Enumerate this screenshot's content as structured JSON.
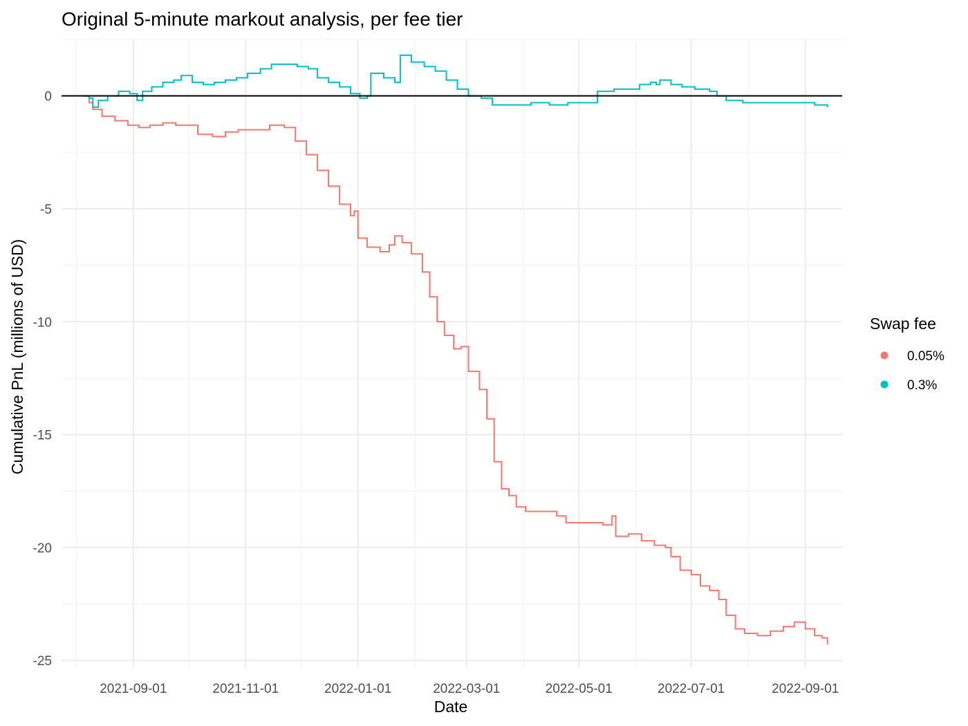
{
  "chart_data": {
    "type": "line",
    "title": "Original 5-minute markout analysis, per fee tier",
    "xlabel": "Date",
    "ylabel": "Cumulative PnL (millions of USD)",
    "x_tick_labels": [
      "2021-09-01",
      "2021-11-01",
      "2022-01-01",
      "2022-03-01",
      "2022-05-01",
      "2022-07-01",
      "2022-09-01"
    ],
    "y_tick_labels": [
      "-25",
      "-20",
      "-15",
      "-10",
      "-5",
      "0"
    ],
    "ylim": [
      -25.3,
      2.5
    ],
    "xlim": [
      "2021-07-24",
      "2022-09-21"
    ],
    "grid": true,
    "hline": 0,
    "legend": {
      "title": "Swap fee",
      "position": "right"
    },
    "series": [
      {
        "name": "0.05%",
        "color": "#F8766D",
        "points": [
          [
            "2021-08-05",
            0.0
          ],
          [
            "2021-08-08",
            -0.3
          ],
          [
            "2021-08-10",
            -0.6
          ],
          [
            "2021-08-15",
            -0.9
          ],
          [
            "2021-08-22",
            -1.1
          ],
          [
            "2021-08-29",
            -1.3
          ],
          [
            "2021-09-04",
            -1.4
          ],
          [
            "2021-09-10",
            -1.3
          ],
          [
            "2021-09-17",
            -1.2
          ],
          [
            "2021-09-24",
            -1.3
          ],
          [
            "2021-09-30",
            -1.3
          ],
          [
            "2021-10-06",
            -1.7
          ],
          [
            "2021-10-14",
            -1.8
          ],
          [
            "2021-10-21",
            -1.6
          ],
          [
            "2021-10-28",
            -1.5
          ],
          [
            "2021-11-07",
            -1.5
          ],
          [
            "2021-11-14",
            -1.3
          ],
          [
            "2021-11-22",
            -1.4
          ],
          [
            "2021-11-28",
            -2.0
          ],
          [
            "2021-12-04",
            -2.6
          ],
          [
            "2021-12-10",
            -3.3
          ],
          [
            "2021-12-16",
            -4.0
          ],
          [
            "2021-12-22",
            -4.8
          ],
          [
            "2021-12-28",
            -5.3
          ],
          [
            "2021-12-30",
            -5.1
          ],
          [
            "2022-01-01",
            -6.3
          ],
          [
            "2022-01-06",
            -6.7
          ],
          [
            "2022-01-13",
            -6.9
          ],
          [
            "2022-01-18",
            -6.6
          ],
          [
            "2022-01-21",
            -6.2
          ],
          [
            "2022-01-25",
            -6.5
          ],
          [
            "2022-01-30",
            -7.0
          ],
          [
            "2022-02-05",
            -7.8
          ],
          [
            "2022-02-09",
            -8.9
          ],
          [
            "2022-02-13",
            -10.0
          ],
          [
            "2022-02-17",
            -10.6
          ],
          [
            "2022-02-22",
            -11.2
          ],
          [
            "2022-02-26",
            -11.1
          ],
          [
            "2022-03-02",
            -12.2
          ],
          [
            "2022-03-08",
            -13.0
          ],
          [
            "2022-03-12",
            -14.3
          ],
          [
            "2022-03-16",
            -16.2
          ],
          [
            "2022-03-20",
            -17.4
          ],
          [
            "2022-03-24",
            -17.7
          ],
          [
            "2022-03-28",
            -18.2
          ],
          [
            "2022-04-02",
            -18.4
          ],
          [
            "2022-04-07",
            -18.4
          ],
          [
            "2022-04-13",
            -18.4
          ],
          [
            "2022-04-19",
            -18.6
          ],
          [
            "2022-04-24",
            -18.9
          ],
          [
            "2022-05-01",
            -18.9
          ],
          [
            "2022-05-08",
            -18.9
          ],
          [
            "2022-05-14",
            -19.0
          ],
          [
            "2022-05-19",
            -18.6
          ],
          [
            "2022-05-21",
            -19.5
          ],
          [
            "2022-05-28",
            -19.4
          ],
          [
            "2022-06-04",
            -19.7
          ],
          [
            "2022-06-11",
            -19.9
          ],
          [
            "2022-06-17",
            -20.0
          ],
          [
            "2022-06-20",
            -20.4
          ],
          [
            "2022-06-25",
            -21.0
          ],
          [
            "2022-07-01",
            -21.2
          ],
          [
            "2022-07-06",
            -21.7
          ],
          [
            "2022-07-11",
            -21.9
          ],
          [
            "2022-07-16",
            -22.3
          ],
          [
            "2022-07-20",
            -23.0
          ],
          [
            "2022-07-25",
            -23.6
          ],
          [
            "2022-07-30",
            -23.8
          ],
          [
            "2022-08-06",
            -23.9
          ],
          [
            "2022-08-13",
            -23.7
          ],
          [
            "2022-08-20",
            -23.5
          ],
          [
            "2022-08-26",
            -23.3
          ],
          [
            "2022-09-01",
            -23.6
          ],
          [
            "2022-09-06",
            -23.9
          ],
          [
            "2022-09-10",
            -24.0
          ],
          [
            "2022-09-13",
            -24.3
          ]
        ]
      },
      {
        "name": "0.3%",
        "color": "#00BFC4",
        "points": [
          [
            "2021-08-05",
            0.0
          ],
          [
            "2021-08-08",
            -0.1
          ],
          [
            "2021-08-10",
            -0.5
          ],
          [
            "2021-08-13",
            -0.2
          ],
          [
            "2021-08-18",
            0.0
          ],
          [
            "2021-08-24",
            0.2
          ],
          [
            "2021-08-30",
            0.1
          ],
          [
            "2021-09-03",
            -0.2
          ],
          [
            "2021-09-06",
            0.2
          ],
          [
            "2021-09-11",
            0.4
          ],
          [
            "2021-09-17",
            0.6
          ],
          [
            "2021-09-23",
            0.7
          ],
          [
            "2021-09-27",
            0.9
          ],
          [
            "2021-10-03",
            0.6
          ],
          [
            "2021-10-09",
            0.5
          ],
          [
            "2021-10-15",
            0.6
          ],
          [
            "2021-10-21",
            0.7
          ],
          [
            "2021-10-27",
            0.8
          ],
          [
            "2021-11-02",
            1.0
          ],
          [
            "2021-11-09",
            1.2
          ],
          [
            "2021-11-15",
            1.4
          ],
          [
            "2021-11-22",
            1.4
          ],
          [
            "2021-11-29",
            1.3
          ],
          [
            "2021-12-05",
            1.2
          ],
          [
            "2021-12-10",
            0.8
          ],
          [
            "2021-12-16",
            0.6
          ],
          [
            "2021-12-22",
            0.4
          ],
          [
            "2021-12-28",
            0.1
          ],
          [
            "2022-01-02",
            -0.1
          ],
          [
            "2022-01-06",
            0.0
          ],
          [
            "2022-01-08",
            1.0
          ],
          [
            "2022-01-15",
            0.8
          ],
          [
            "2022-01-21",
            0.6
          ],
          [
            "2022-01-24",
            1.8
          ],
          [
            "2022-01-30",
            1.5
          ],
          [
            "2022-02-06",
            1.3
          ],
          [
            "2022-02-12",
            1.1
          ],
          [
            "2022-02-18",
            0.7
          ],
          [
            "2022-02-24",
            0.3
          ],
          [
            "2022-03-02",
            0.0
          ],
          [
            "2022-03-09",
            -0.1
          ],
          [
            "2022-03-15",
            -0.4
          ],
          [
            "2022-03-25",
            -0.4
          ],
          [
            "2022-04-05",
            -0.3
          ],
          [
            "2022-04-15",
            -0.4
          ],
          [
            "2022-04-25",
            -0.3
          ],
          [
            "2022-05-05",
            -0.3
          ],
          [
            "2022-05-10",
            -0.3
          ],
          [
            "2022-05-11",
            0.2
          ],
          [
            "2022-05-20",
            0.3
          ],
          [
            "2022-05-29",
            0.3
          ],
          [
            "2022-06-03",
            0.5
          ],
          [
            "2022-06-09",
            0.6
          ],
          [
            "2022-06-12",
            0.5
          ],
          [
            "2022-06-14",
            0.7
          ],
          [
            "2022-06-20",
            0.5
          ],
          [
            "2022-06-26",
            0.4
          ],
          [
            "2022-07-03",
            0.3
          ],
          [
            "2022-07-11",
            0.2
          ],
          [
            "2022-07-15",
            0.0
          ],
          [
            "2022-07-20",
            -0.2
          ],
          [
            "2022-07-29",
            -0.3
          ],
          [
            "2022-08-08",
            -0.3
          ],
          [
            "2022-08-18",
            -0.3
          ],
          [
            "2022-08-28",
            -0.3
          ],
          [
            "2022-09-06",
            -0.4
          ],
          [
            "2022-09-13",
            -0.5
          ]
        ]
      }
    ]
  }
}
